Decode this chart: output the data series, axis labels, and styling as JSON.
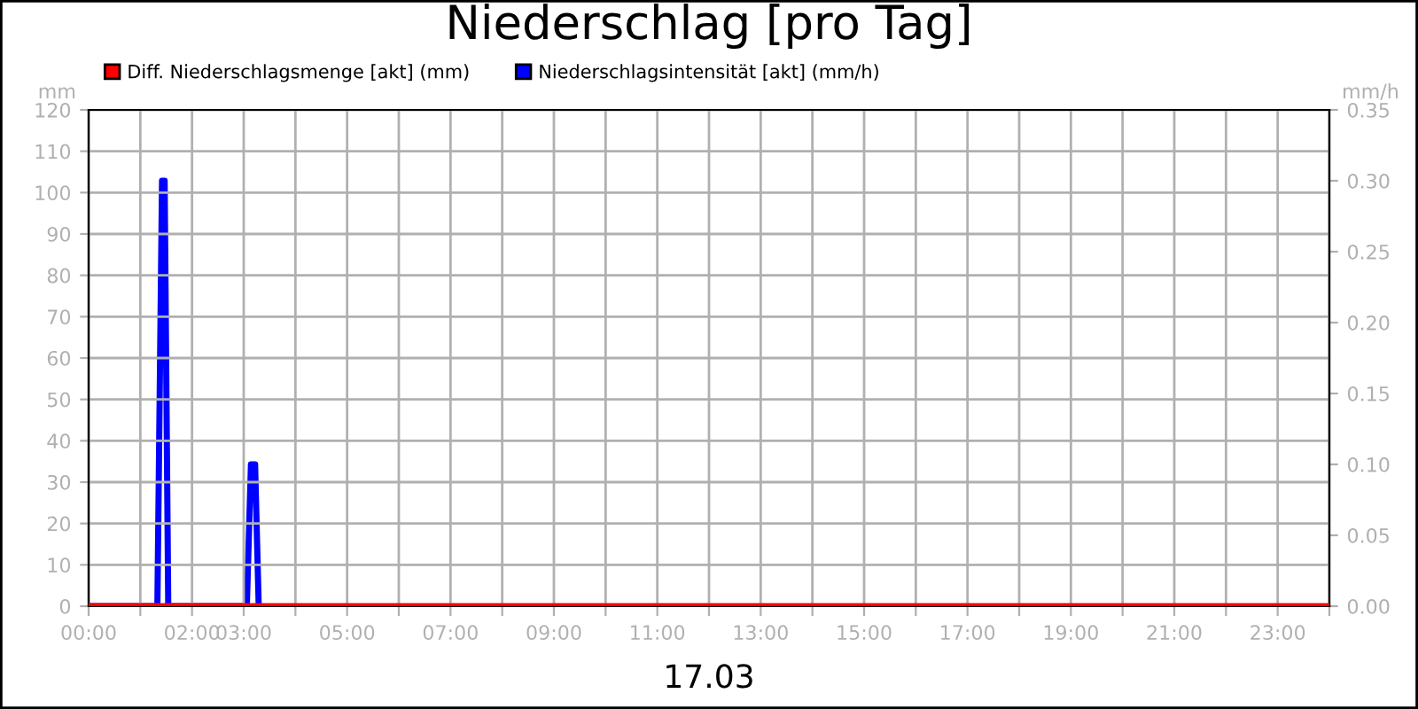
{
  "chart_data": {
    "type": "line",
    "title": "Niederschlag [pro Tag]",
    "xlabel": "17.03",
    "ylabel": "mm",
    "y2label": "mm/h",
    "series": [
      {
        "name": "Diff. Niederschlagsmenge [akt] (mm)",
        "color": "#ff0000",
        "x": [
          0,
          24
        ],
        "values": [
          0,
          0
        ]
      },
      {
        "name": "Niederschlagsintensität [akt] (mm/h)",
        "color": "#0000ff",
        "axis": "y2",
        "x": [
          0,
          1.33,
          1.42,
          1.47,
          1.54,
          3.06,
          3.14,
          3.22,
          3.29
        ],
        "values": [
          0,
          0,
          0.3,
          0.3,
          0,
          0,
          0.1,
          0.1,
          0
        ]
      }
    ],
    "xlim": [
      0,
      24
    ],
    "xticks": [
      {
        "value": 0,
        "label": "00:00"
      },
      {
        "value": 1,
        "label": null
      },
      {
        "value": 2,
        "label": "02:00"
      },
      {
        "value": 3,
        "label": "03:00"
      },
      {
        "value": 4,
        "label": null
      },
      {
        "value": 5,
        "label": "05:00"
      },
      {
        "value": 6,
        "label": null
      },
      {
        "value": 7,
        "label": "07:00"
      },
      {
        "value": 8,
        "label": null
      },
      {
        "value": 9,
        "label": "09:00"
      },
      {
        "value": 10,
        "label": null
      },
      {
        "value": 11,
        "label": "11:00"
      },
      {
        "value": 12,
        "label": null
      },
      {
        "value": 13,
        "label": "13:00"
      },
      {
        "value": 14,
        "label": null
      },
      {
        "value": 15,
        "label": "15:00"
      },
      {
        "value": 16,
        "label": null
      },
      {
        "value": 17,
        "label": "17:00"
      },
      {
        "value": 18,
        "label": null
      },
      {
        "value": 19,
        "label": "19:00"
      },
      {
        "value": 20,
        "label": null
      },
      {
        "value": 21,
        "label": "21:00"
      },
      {
        "value": 22,
        "label": null
      },
      {
        "value": 23,
        "label": "23:00"
      },
      {
        "value": 24,
        "label": null
      }
    ],
    "ylim": [
      0,
      120
    ],
    "yticks": [
      0,
      10,
      20,
      30,
      40,
      50,
      60,
      70,
      80,
      90,
      100,
      110,
      120
    ],
    "y2lim": [
      0,
      0.35
    ],
    "y2ticks": [
      {
        "value": 0,
        "label": "0.00"
      },
      {
        "value": 0.05,
        "label": "0.05"
      },
      {
        "value": 0.1,
        "label": "0.10"
      },
      {
        "value": 0.15,
        "label": "0.15"
      },
      {
        "value": 0.2,
        "label": "0.20"
      },
      {
        "value": 0.25,
        "label": "0.25"
      },
      {
        "value": 0.3,
        "label": "0.30"
      },
      {
        "value": 0.35,
        "label": "0.35"
      }
    ],
    "grid": true,
    "legend": "top left",
    "marker": "none",
    "line_style": "solid"
  }
}
